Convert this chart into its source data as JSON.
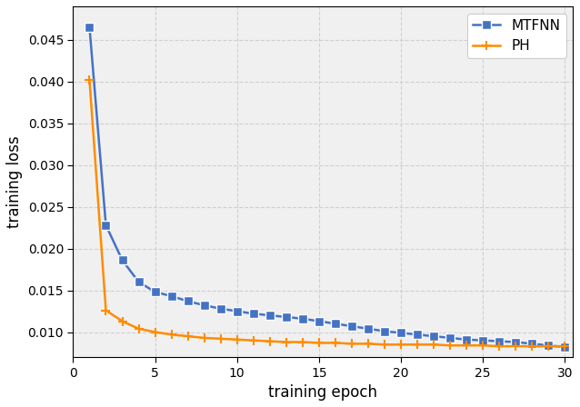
{
  "title": "",
  "xlabel": "training epoch",
  "ylabel": "training loss",
  "xlim": [
    0.5,
    30.5
  ],
  "ylim": [
    0.007,
    0.049
  ],
  "xticks": [
    0,
    5,
    10,
    15,
    20,
    25,
    30
  ],
  "yticks": [
    0.01,
    0.015,
    0.02,
    0.025,
    0.03,
    0.035,
    0.04,
    0.045
  ],
  "background_color": "#f0f0f0",
  "grid_color": "#d0d0d0",
  "mtfnn_color": "#4472c4",
  "ph_color": "#ff8c00",
  "mtfnn_epochs": [
    1,
    2,
    3,
    4,
    5,
    6,
    7,
    8,
    9,
    10,
    11,
    12,
    13,
    14,
    15,
    16,
    17,
    18,
    19,
    20,
    21,
    22,
    23,
    24,
    25,
    26,
    27,
    28,
    29,
    30
  ],
  "mtfnn_values": [
    0.0465,
    0.0228,
    0.0186,
    0.016,
    0.0148,
    0.0143,
    0.0137,
    0.0132,
    0.0128,
    0.0125,
    0.0122,
    0.012,
    0.0118,
    0.0116,
    0.0113,
    0.011,
    0.0107,
    0.0104,
    0.0101,
    0.0099,
    0.0097,
    0.0095,
    0.0093,
    0.0091,
    0.009,
    0.0089,
    0.0088,
    0.0086,
    0.0084,
    0.0082
  ],
  "ph_epochs": [
    1,
    2,
    3,
    4,
    5,
    6,
    7,
    8,
    9,
    10,
    11,
    12,
    13,
    14,
    15,
    16,
    17,
    18,
    19,
    20,
    21,
    22,
    23,
    24,
    25,
    26,
    27,
    28,
    29,
    30
  ],
  "ph_values": [
    0.0402,
    0.0126,
    0.0113,
    0.0104,
    0.01,
    0.0097,
    0.0095,
    0.0093,
    0.0092,
    0.0091,
    0.009,
    0.0089,
    0.0088,
    0.0088,
    0.0087,
    0.0087,
    0.0086,
    0.0086,
    0.0085,
    0.0085,
    0.0085,
    0.0085,
    0.0084,
    0.0084,
    0.0084,
    0.0083,
    0.0083,
    0.0083,
    0.0083,
    0.0083
  ],
  "mtfnn_label": "MTFNN",
  "ph_label": "PH",
  "mtfnn_markersize": 7,
  "ph_markersize": 7,
  "linewidth": 1.8
}
